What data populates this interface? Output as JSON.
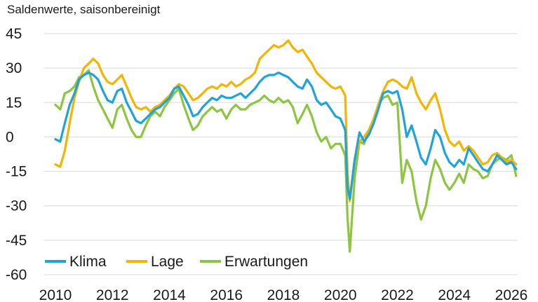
{
  "chart_data": {
    "type": "line",
    "subtitle": "Saldenwerte, saisonbereinigt",
    "ylim": [
      -60,
      45
    ],
    "yticks": [
      45,
      30,
      15,
      0,
      -15,
      -30,
      -45,
      -60
    ],
    "xlim": [
      2010,
      2026.5
    ],
    "xticks": [
      2010,
      2012,
      2014,
      2016,
      2018,
      2020,
      2022,
      2024,
      2026
    ],
    "grid": "horizontal",
    "legend_position": "bottom-left",
    "series": [
      {
        "name": "Klima",
        "color": "#1ea3dc",
        "points": [
          [
            2010.0,
            -1
          ],
          [
            2010.17,
            -2
          ],
          [
            2010.33,
            6
          ],
          [
            2010.5,
            14
          ],
          [
            2010.67,
            19
          ],
          [
            2010.83,
            25
          ],
          [
            2011.0,
            27
          ],
          [
            2011.17,
            28
          ],
          [
            2011.33,
            27
          ],
          [
            2011.5,
            25
          ],
          [
            2011.67,
            20
          ],
          [
            2011.83,
            16
          ],
          [
            2012.0,
            15
          ],
          [
            2012.17,
            20
          ],
          [
            2012.33,
            21
          ],
          [
            2012.5,
            15
          ],
          [
            2012.67,
            11
          ],
          [
            2012.83,
            7
          ],
          [
            2013.0,
            6
          ],
          [
            2013.17,
            8
          ],
          [
            2013.33,
            10
          ],
          [
            2013.5,
            12
          ],
          [
            2013.67,
            13
          ],
          [
            2013.83,
            15
          ],
          [
            2014.0,
            17
          ],
          [
            2014.17,
            21
          ],
          [
            2014.33,
            22
          ],
          [
            2014.5,
            18
          ],
          [
            2014.67,
            14
          ],
          [
            2014.83,
            9
          ],
          [
            2015.0,
            10
          ],
          [
            2015.17,
            13
          ],
          [
            2015.33,
            15
          ],
          [
            2015.5,
            17
          ],
          [
            2015.67,
            16
          ],
          [
            2015.83,
            18
          ],
          [
            2016.0,
            17
          ],
          [
            2016.17,
            17
          ],
          [
            2016.33,
            18
          ],
          [
            2016.5,
            19
          ],
          [
            2016.67,
            17
          ],
          [
            2016.83,
            19
          ],
          [
            2017.0,
            21
          ],
          [
            2017.17,
            24
          ],
          [
            2017.33,
            26
          ],
          [
            2017.5,
            27
          ],
          [
            2017.67,
            27
          ],
          [
            2017.83,
            28
          ],
          [
            2018.0,
            27
          ],
          [
            2018.17,
            26
          ],
          [
            2018.33,
            24
          ],
          [
            2018.5,
            22
          ],
          [
            2018.67,
            21
          ],
          [
            2018.83,
            25
          ],
          [
            2019.0,
            22
          ],
          [
            2019.17,
            16
          ],
          [
            2019.33,
            14
          ],
          [
            2019.5,
            15
          ],
          [
            2019.67,
            12
          ],
          [
            2019.83,
            9
          ],
          [
            2020.0,
            8
          ],
          [
            2020.17,
            3
          ],
          [
            2020.25,
            -22
          ],
          [
            2020.33,
            -27
          ],
          [
            2020.5,
            -10
          ],
          [
            2020.67,
            2
          ],
          [
            2020.83,
            -2
          ],
          [
            2021.0,
            1
          ],
          [
            2021.17,
            6
          ],
          [
            2021.33,
            12
          ],
          [
            2021.5,
            19
          ],
          [
            2021.67,
            20
          ],
          [
            2021.83,
            19
          ],
          [
            2022.0,
            20
          ],
          [
            2022.17,
            12
          ],
          [
            2022.33,
            0
          ],
          [
            2022.5,
            5
          ],
          [
            2022.67,
            -2
          ],
          [
            2022.83,
            -9
          ],
          [
            2023.0,
            -12
          ],
          [
            2023.17,
            -5
          ],
          [
            2023.33,
            3
          ],
          [
            2023.5,
            0
          ],
          [
            2023.67,
            -7
          ],
          [
            2023.83,
            -11
          ],
          [
            2024.0,
            -13
          ],
          [
            2024.17,
            -10
          ],
          [
            2024.33,
            -12
          ],
          [
            2024.5,
            -5
          ],
          [
            2024.67,
            -8
          ],
          [
            2024.83,
            -11
          ],
          [
            2025.0,
            -14
          ],
          [
            2025.17,
            -15
          ],
          [
            2025.33,
            -12
          ],
          [
            2025.5,
            -8
          ],
          [
            2025.67,
            -10
          ],
          [
            2025.83,
            -12
          ],
          [
            2026.0,
            -11
          ],
          [
            2026.17,
            -14
          ]
        ]
      },
      {
        "name": "Lage",
        "color": "#f5b400",
        "points": [
          [
            2010.0,
            -12
          ],
          [
            2010.17,
            -13
          ],
          [
            2010.33,
            -6
          ],
          [
            2010.5,
            6
          ],
          [
            2010.67,
            17
          ],
          [
            2010.83,
            24
          ],
          [
            2011.0,
            30
          ],
          [
            2011.17,
            32
          ],
          [
            2011.33,
            34
          ],
          [
            2011.5,
            32
          ],
          [
            2011.67,
            27
          ],
          [
            2011.83,
            24
          ],
          [
            2012.0,
            23
          ],
          [
            2012.17,
            25
          ],
          [
            2012.33,
            27
          ],
          [
            2012.5,
            22
          ],
          [
            2012.67,
            17
          ],
          [
            2012.83,
            13
          ],
          [
            2013.0,
            12
          ],
          [
            2013.17,
            13
          ],
          [
            2013.33,
            11
          ],
          [
            2013.5,
            13
          ],
          [
            2013.67,
            14
          ],
          [
            2013.83,
            16
          ],
          [
            2014.0,
            18
          ],
          [
            2014.17,
            21
          ],
          [
            2014.33,
            23
          ],
          [
            2014.5,
            22
          ],
          [
            2014.67,
            19
          ],
          [
            2014.83,
            16
          ],
          [
            2015.0,
            17
          ],
          [
            2015.17,
            19
          ],
          [
            2015.33,
            21
          ],
          [
            2015.5,
            22
          ],
          [
            2015.67,
            21
          ],
          [
            2015.83,
            23
          ],
          [
            2016.0,
            22
          ],
          [
            2016.17,
            24
          ],
          [
            2016.33,
            22
          ],
          [
            2016.5,
            23
          ],
          [
            2016.67,
            25
          ],
          [
            2016.83,
            26
          ],
          [
            2017.0,
            28
          ],
          [
            2017.17,
            34
          ],
          [
            2017.33,
            36
          ],
          [
            2017.5,
            38
          ],
          [
            2017.67,
            40
          ],
          [
            2017.83,
            39
          ],
          [
            2018.0,
            40
          ],
          [
            2018.17,
            42
          ],
          [
            2018.33,
            39
          ],
          [
            2018.5,
            37
          ],
          [
            2018.67,
            38
          ],
          [
            2018.83,
            35
          ],
          [
            2019.0,
            32
          ],
          [
            2019.17,
            28
          ],
          [
            2019.33,
            26
          ],
          [
            2019.5,
            24
          ],
          [
            2019.67,
            22
          ],
          [
            2019.83,
            21
          ],
          [
            2020.0,
            22
          ],
          [
            2020.17,
            18
          ],
          [
            2020.25,
            -15
          ],
          [
            2020.33,
            -28
          ],
          [
            2020.5,
            -10
          ],
          [
            2020.67,
            -2
          ],
          [
            2020.83,
            0
          ],
          [
            2021.0,
            3
          ],
          [
            2021.17,
            8
          ],
          [
            2021.33,
            14
          ],
          [
            2021.5,
            20
          ],
          [
            2021.67,
            24
          ],
          [
            2021.83,
            25
          ],
          [
            2022.0,
            24
          ],
          [
            2022.17,
            22
          ],
          [
            2022.33,
            21
          ],
          [
            2022.5,
            26
          ],
          [
            2022.67,
            19
          ],
          [
            2022.83,
            15
          ],
          [
            2023.0,
            12
          ],
          [
            2023.17,
            16
          ],
          [
            2023.33,
            19
          ],
          [
            2023.5,
            12
          ],
          [
            2023.67,
            3
          ],
          [
            2023.83,
            -2
          ],
          [
            2024.0,
            -4
          ],
          [
            2024.17,
            -2
          ],
          [
            2024.33,
            -6
          ],
          [
            2024.5,
            -4
          ],
          [
            2024.67,
            -6
          ],
          [
            2024.83,
            -9
          ],
          [
            2025.0,
            -12
          ],
          [
            2025.17,
            -11
          ],
          [
            2025.33,
            -8
          ],
          [
            2025.5,
            -7
          ],
          [
            2025.67,
            -9
          ],
          [
            2025.83,
            -11
          ],
          [
            2026.0,
            -10
          ],
          [
            2026.17,
            -12
          ]
        ]
      },
      {
        "name": "Erwartungen",
        "color": "#8cc63f",
        "points": [
          [
            2010.0,
            14
          ],
          [
            2010.17,
            12
          ],
          [
            2010.33,
            19
          ],
          [
            2010.5,
            20
          ],
          [
            2010.67,
            22
          ],
          [
            2010.83,
            26
          ],
          [
            2011.0,
            27
          ],
          [
            2011.17,
            29
          ],
          [
            2011.33,
            22
          ],
          [
            2011.5,
            16
          ],
          [
            2011.67,
            12
          ],
          [
            2011.83,
            8
          ],
          [
            2012.0,
            4
          ],
          [
            2012.17,
            12
          ],
          [
            2012.33,
            14
          ],
          [
            2012.5,
            8
          ],
          [
            2012.67,
            3
          ],
          [
            2012.83,
            0
          ],
          [
            2013.0,
            0
          ],
          [
            2013.17,
            5
          ],
          [
            2013.33,
            9
          ],
          [
            2013.5,
            11
          ],
          [
            2013.67,
            9
          ],
          [
            2013.83,
            13
          ],
          [
            2014.0,
            16
          ],
          [
            2014.17,
            19
          ],
          [
            2014.33,
            21
          ],
          [
            2014.5,
            14
          ],
          [
            2014.67,
            8
          ],
          [
            2014.83,
            3
          ],
          [
            2015.0,
            5
          ],
          [
            2015.17,
            9
          ],
          [
            2015.33,
            11
          ],
          [
            2015.5,
            13
          ],
          [
            2015.67,
            11
          ],
          [
            2015.83,
            12
          ],
          [
            2016.0,
            8
          ],
          [
            2016.17,
            12
          ],
          [
            2016.33,
            14
          ],
          [
            2016.5,
            12
          ],
          [
            2016.67,
            12
          ],
          [
            2016.83,
            14
          ],
          [
            2017.0,
            15
          ],
          [
            2017.17,
            16
          ],
          [
            2017.33,
            18
          ],
          [
            2017.5,
            16
          ],
          [
            2017.67,
            15
          ],
          [
            2017.83,
            17
          ],
          [
            2018.0,
            15
          ],
          [
            2018.17,
            16
          ],
          [
            2018.33,
            13
          ],
          [
            2018.5,
            6
          ],
          [
            2018.67,
            10
          ],
          [
            2018.83,
            14
          ],
          [
            2019.0,
            9
          ],
          [
            2019.17,
            2
          ],
          [
            2019.33,
            -2
          ],
          [
            2019.5,
            0
          ],
          [
            2019.67,
            -5
          ],
          [
            2019.83,
            -3
          ],
          [
            2020.0,
            -3
          ],
          [
            2020.17,
            -8
          ],
          [
            2020.25,
            -35
          ],
          [
            2020.33,
            -50
          ],
          [
            2020.5,
            -18
          ],
          [
            2020.67,
            -2
          ],
          [
            2020.83,
            -3
          ],
          [
            2021.0,
            3
          ],
          [
            2021.17,
            6
          ],
          [
            2021.33,
            14
          ],
          [
            2021.5,
            17
          ],
          [
            2021.67,
            18
          ],
          [
            2021.83,
            14
          ],
          [
            2022.0,
            15
          ],
          [
            2022.17,
            -20
          ],
          [
            2022.33,
            -10
          ],
          [
            2022.5,
            -15
          ],
          [
            2022.67,
            -28
          ],
          [
            2022.83,
            -36
          ],
          [
            2023.0,
            -30
          ],
          [
            2023.17,
            -18
          ],
          [
            2023.33,
            -10
          ],
          [
            2023.5,
            -14
          ],
          [
            2023.67,
            -20
          ],
          [
            2023.83,
            -23
          ],
          [
            2024.0,
            -20
          ],
          [
            2024.17,
            -16
          ],
          [
            2024.33,
            -20
          ],
          [
            2024.5,
            -12
          ],
          [
            2024.67,
            -14
          ],
          [
            2024.83,
            -15
          ],
          [
            2025.0,
            -18
          ],
          [
            2025.17,
            -17
          ],
          [
            2025.33,
            -12
          ],
          [
            2025.5,
            -10
          ],
          [
            2025.67,
            -9
          ],
          [
            2025.83,
            -10
          ],
          [
            2026.0,
            -8
          ],
          [
            2026.17,
            -17
          ]
        ]
      }
    ]
  }
}
